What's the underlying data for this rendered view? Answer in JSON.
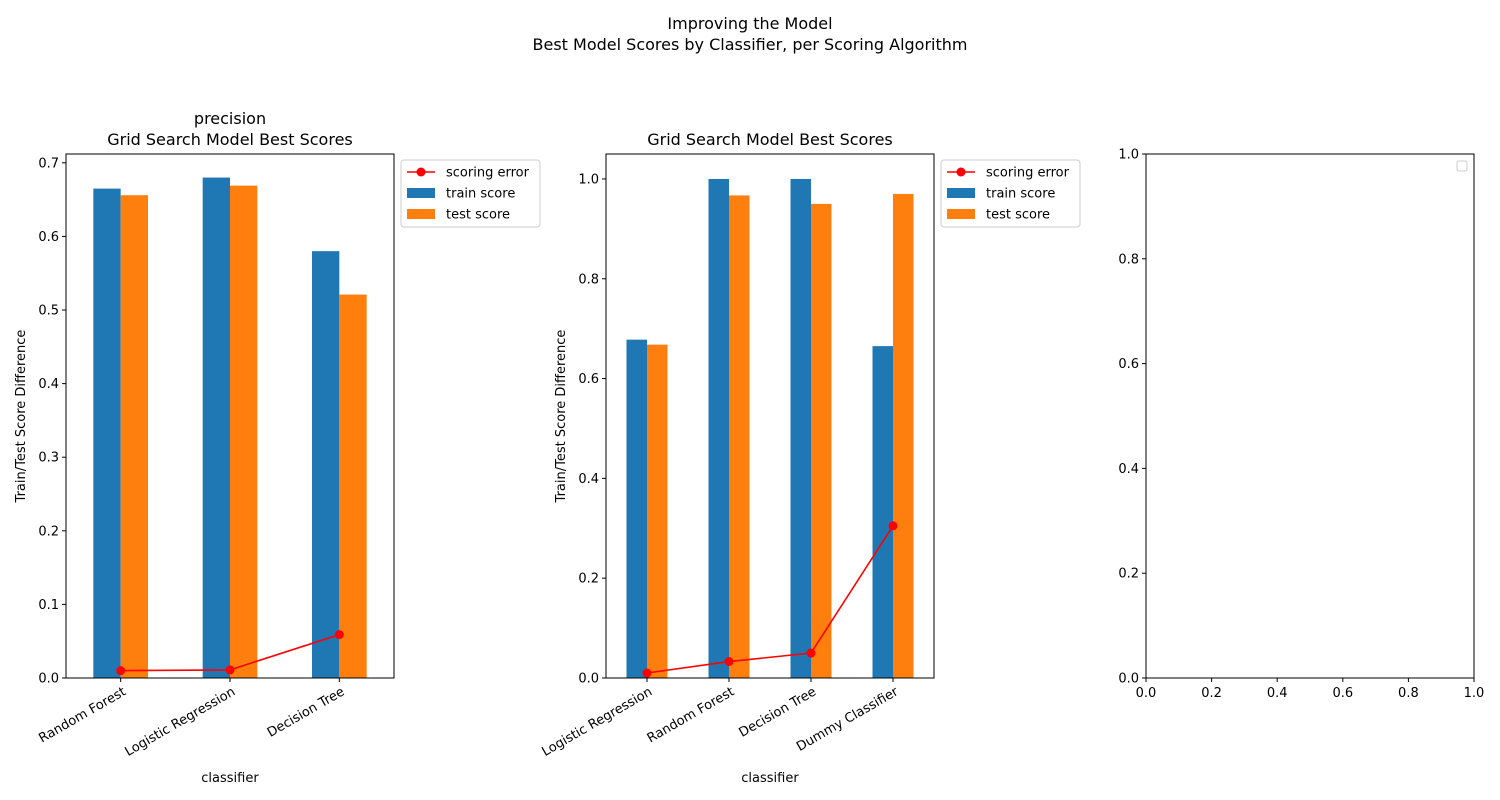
{
  "figure": {
    "suptitle_line1": "Improving the Model",
    "suptitle_line2": "Best Model Scores by Classifier, per Scoring Algorithm"
  },
  "colors": {
    "train": "#1f77b4",
    "test": "#ff7f0e",
    "error": "#ff0000"
  },
  "chart_data": [
    {
      "type": "bar",
      "title": [
        "precision",
        "Grid Search Model Best Scores"
      ],
      "xlabel": "classifier",
      "ylabel": "Train/Test Score Difference",
      "categories": [
        "Random Forest",
        "Logistic Regression",
        "Decision Tree"
      ],
      "ylim": [
        0,
        0.712
      ],
      "yticks": [
        0.0,
        0.1,
        0.2,
        0.3,
        0.4,
        0.5,
        0.6,
        0.7
      ],
      "ytick_labels": [
        "0.0",
        "0.1",
        "0.2",
        "0.3",
        "0.4",
        "0.5",
        "0.6",
        "0.7"
      ],
      "series": [
        {
          "name": "train score",
          "values": [
            0.665,
            0.68,
            0.58
          ]
        },
        {
          "name": "test score",
          "values": [
            0.656,
            0.669,
            0.521
          ]
        }
      ],
      "line_series": {
        "name": "scoring error",
        "values": [
          0.01,
          0.011,
          0.059
        ]
      },
      "legend": "outside upper right",
      "grid": false
    },
    {
      "type": "bar",
      "title": [
        "Grid Search Model Best Scores"
      ],
      "xlabel": "classifier",
      "ylabel": "Train/Test Score Difference",
      "categories": [
        "Logistic Regression",
        "Random Forest",
        "Decision Tree",
        "Dummy Classifier"
      ],
      "ylim": [
        0,
        1.05
      ],
      "yticks": [
        0.0,
        0.2,
        0.4,
        0.6,
        0.8,
        1.0
      ],
      "ytick_labels": [
        "0.0",
        "0.2",
        "0.4",
        "0.6",
        "0.8",
        "1.0"
      ],
      "series": [
        {
          "name": "train score",
          "values": [
            0.678,
            1.0,
            1.0,
            0.665
          ]
        },
        {
          "name": "test score",
          "values": [
            0.668,
            0.967,
            0.95,
            0.97
          ]
        }
      ],
      "line_series": {
        "name": "scoring error",
        "values": [
          0.01,
          0.033,
          0.05,
          0.305
        ]
      },
      "legend": "outside upper right",
      "grid": false
    },
    {
      "type": "bar",
      "title": [],
      "xlabel": "",
      "ylabel": "",
      "categories": [],
      "xlim": [
        0,
        1
      ],
      "ylim": [
        0,
        1
      ],
      "xticks": [
        0.0,
        0.2,
        0.4,
        0.6,
        0.8,
        1.0
      ],
      "xtick_labels": [
        "0.0",
        "0.2",
        "0.4",
        "0.6",
        "0.8",
        "1.0"
      ],
      "yticks": [
        0.0,
        0.2,
        0.4,
        0.6,
        0.8,
        1.0
      ],
      "ytick_labels": [
        "0.0",
        "0.2",
        "0.4",
        "0.6",
        "0.8",
        "1.0"
      ],
      "series": [],
      "legend": "upper right (empty)",
      "grid": false
    }
  ]
}
